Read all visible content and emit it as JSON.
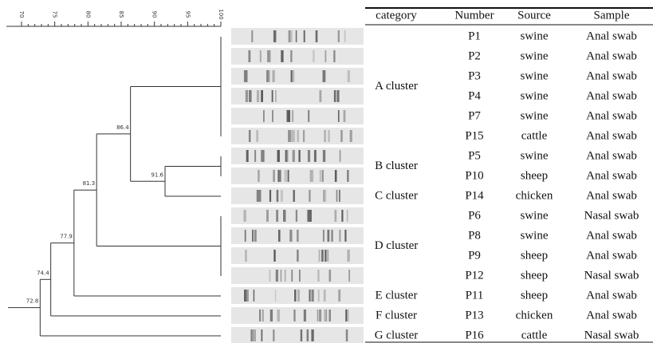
{
  "axis": {
    "range": [
      70,
      100
    ],
    "ticks": [
      70,
      75,
      80,
      85,
      90,
      95,
      100
    ]
  },
  "dendrogram": {
    "nodes": [
      91.6,
      86.4,
      81.3,
      77.9,
      74.4,
      72.8
    ]
  },
  "table": {
    "headers": [
      "category",
      "Number",
      "Source",
      "Sample"
    ],
    "groups": [
      {
        "label": "A cluster",
        "rows": [
          [
            "P1",
            "swine",
            "Anal swab"
          ],
          [
            "P2",
            "swine",
            "Anal swab"
          ],
          [
            "P3",
            "swine",
            "Anal swab"
          ],
          [
            "P4",
            "swine",
            "Anal swab"
          ],
          [
            "P7",
            "swine",
            "Anal swab"
          ],
          [
            "P15",
            "cattle",
            "Anal swab"
          ]
        ]
      },
      {
        "label": "B cluster",
        "rows": [
          [
            "P5",
            "swine",
            "Anal swab"
          ],
          [
            "P10",
            "sheep",
            "Anal swab"
          ]
        ]
      },
      {
        "label": "C cluster",
        "rows": [
          [
            "P14",
            "chicken",
            "Anal swab"
          ]
        ]
      },
      {
        "label": "D cluster",
        "rows": [
          [
            "P6",
            "swine",
            "Nasal swab"
          ],
          [
            "P8",
            "swine",
            "Anal swab"
          ],
          [
            "P9",
            "sheep",
            "Anal swab"
          ],
          [
            "P12",
            "sheep",
            "Nasal swab"
          ]
        ]
      },
      {
        "label": "E cluster",
        "rows": [
          [
            "P11",
            "sheep",
            "Anal swab"
          ]
        ]
      },
      {
        "label": "F cluster",
        "rows": [
          [
            "P13",
            "chicken",
            "Anal swab"
          ]
        ]
      },
      {
        "label": "G cluster",
        "rows": [
          [
            "P16",
            "cattle",
            "Nasal swab"
          ]
        ]
      }
    ]
  }
}
